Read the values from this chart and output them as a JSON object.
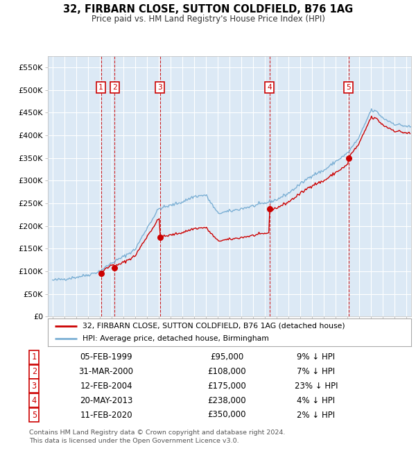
{
  "title": "32, FIRBARN CLOSE, SUTTON COLDFIELD, B76 1AG",
  "subtitle": "Price paid vs. HM Land Registry's House Price Index (HPI)",
  "legend_red": "32, FIRBARN CLOSE, SUTTON COLDFIELD, B76 1AG (detached house)",
  "legend_blue": "HPI: Average price, detached house, Birmingham",
  "footer1": "Contains HM Land Registry data © Crown copyright and database right 2024.",
  "footer2": "This data is licensed under the Open Government Licence v3.0.",
  "transactions": [
    {
      "num": 1,
      "date": "05-FEB-1999",
      "price": 95000,
      "year_x": 1999.1,
      "pct": "9% ↓ HPI"
    },
    {
      "num": 2,
      "date": "31-MAR-2000",
      "price": 108000,
      "year_x": 2000.25,
      "pct": "7% ↓ HPI"
    },
    {
      "num": 3,
      "date": "12-FEB-2004",
      "price": 175000,
      "year_x": 2004.1,
      "pct": "23% ↓ HPI"
    },
    {
      "num": 4,
      "date": "20-MAY-2013",
      "price": 238000,
      "year_x": 2013.4,
      "pct": "4% ↓ HPI"
    },
    {
      "num": 5,
      "date": "11-FEB-2020",
      "price": 350000,
      "year_x": 2020.1,
      "pct": "2% ↓ HPI"
    }
  ],
  "ylim": [
    0,
    575000
  ],
  "xlim_start": 1994.6,
  "xlim_end": 2025.4,
  "background_color": "#dce9f5",
  "grid_color": "#ffffff",
  "red_line_color": "#cc0000",
  "blue_line_color": "#7bafd4",
  "vline_color": "#cc0000",
  "box_color": "#cc0000",
  "hpi_key_years": [
    1995,
    1996,
    1997,
    1998,
    1999,
    2000,
    2001,
    2002,
    2003,
    2004,
    2005,
    2006,
    2007,
    2008,
    2009,
    2010,
    2011,
    2012,
    2013,
    2014,
    2015,
    2016,
    2017,
    2018,
    2019,
    2020,
    2021,
    2022,
    2022.5,
    2023,
    2024,
    2025.4
  ],
  "hpi_key_vals": [
    80000,
    83000,
    87000,
    92000,
    100000,
    118000,
    132000,
    148000,
    195000,
    238000,
    245000,
    253000,
    265000,
    268000,
    228000,
    232000,
    238000,
    244000,
    250000,
    258000,
    272000,
    292000,
    312000,
    322000,
    342000,
    360000,
    395000,
    455000,
    452000,
    438000,
    425000,
    418000
  ],
  "yticks": [
    0,
    50000,
    100000,
    150000,
    200000,
    250000,
    300000,
    350000,
    400000,
    450000,
    500000,
    550000
  ],
  "yticklabels": [
    "£0",
    "£50K",
    "£100K",
    "£150K",
    "£200K",
    "£250K",
    "£300K",
    "£350K",
    "£400K",
    "£450K",
    "£500K",
    "£550K"
  ],
  "xticks": [
    1995,
    1996,
    1997,
    1998,
    1999,
    2000,
    2001,
    2002,
    2003,
    2004,
    2005,
    2006,
    2007,
    2008,
    2009,
    2010,
    2011,
    2012,
    2013,
    2014,
    2015,
    2016,
    2017,
    2018,
    2019,
    2020,
    2021,
    2022,
    2023,
    2024,
    2025
  ]
}
